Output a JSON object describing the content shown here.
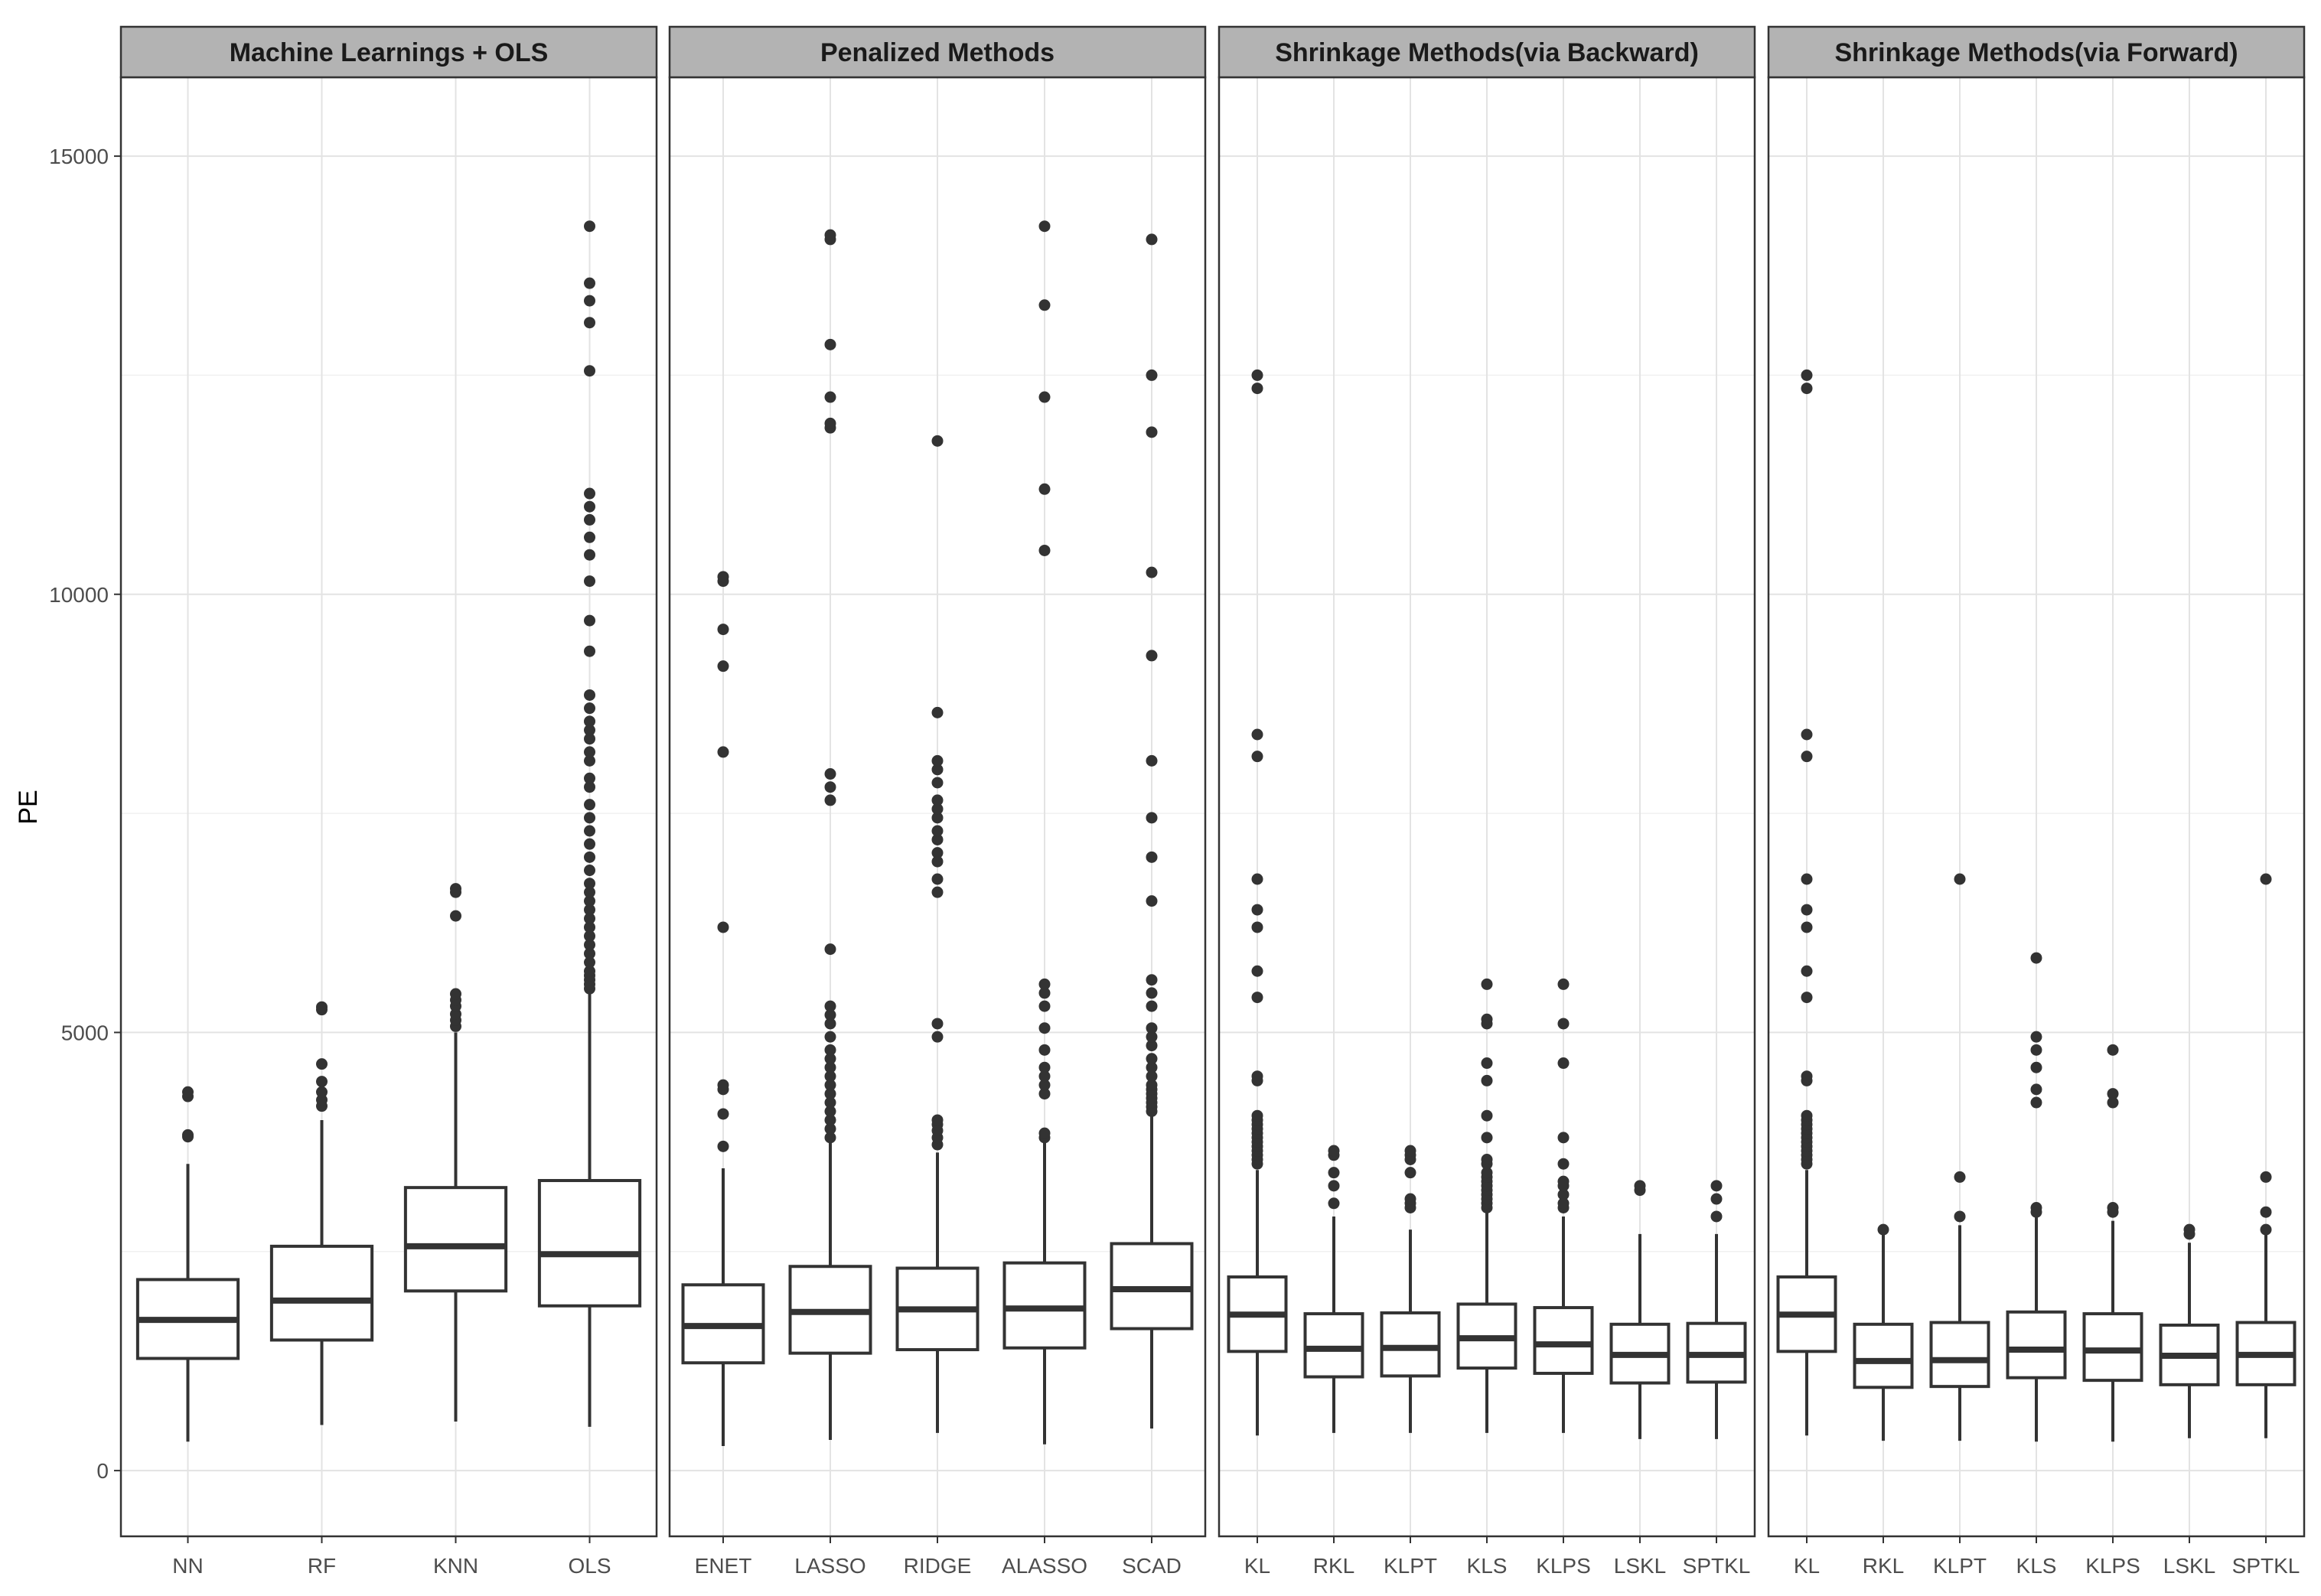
{
  "chart_data": {
    "type": "boxplot",
    "ylabel": "PE",
    "xlabel": "",
    "ylim": [
      -750,
      15900
    ],
    "yticks": [
      0,
      5000,
      10000,
      15000
    ],
    "ytick_labels": [
      "0",
      "5000",
      "10000",
      "15000"
    ],
    "grid": true,
    "legend": "none",
    "panels": [
      {
        "title": "Machine Learnings + OLS",
        "categories": [
          "NN",
          "RF",
          "KNN",
          "OLS"
        ],
        "boxes": [
          {
            "name": "NN",
            "lower_whisker": 330,
            "q1": 1280,
            "median": 1720,
            "q3": 2180,
            "upper_whisker": 3500,
            "outliers": [
              3810,
              3830,
              4270,
              4320
            ]
          },
          {
            "name": "RF",
            "lower_whisker": 520,
            "q1": 1490,
            "median": 1940,
            "q3": 2560,
            "upper_whisker": 4000,
            "outliers": [
              4160,
              4230,
              4320,
              4440,
              4640,
              5260,
              5290
            ]
          },
          {
            "name": "KNN",
            "lower_whisker": 560,
            "q1": 2050,
            "median": 2560,
            "q3": 3230,
            "upper_whisker": 5000,
            "outliers": [
              5070,
              5140,
              5210,
              5300,
              5370,
              5440,
              6330,
              6600,
              6640
            ]
          },
          {
            "name": "OLS",
            "lower_whisker": 500,
            "q1": 1880,
            "median": 2470,
            "q3": 3310,
            "upper_whisker": 5450,
            "outliers": [
              5500,
              5550,
              5600,
              5650,
              5700,
              5800,
              5900,
              6000,
              6100,
              6200,
              6300,
              6400,
              6500,
              6600,
              6700,
              6850,
              7000,
              7150,
              7300,
              7450,
              7600,
              7800,
              7900,
              8100,
              8200,
              8350,
              8450,
              8550,
              8700,
              8850,
              9350,
              9700,
              10150,
              10450,
              10650,
              10850,
              11000,
              11150,
              12550,
              13100,
              13350,
              13550,
              14200
            ]
          }
        ]
      },
      {
        "title": "Penalized Methods",
        "categories": [
          "ENET",
          "LASSO",
          "RIDGE",
          "ALASSO",
          "SCAD"
        ],
        "boxes": [
          {
            "name": "ENET",
            "lower_whisker": 280,
            "q1": 1230,
            "median": 1650,
            "q3": 2120,
            "upper_whisker": 3450,
            "outliers": [
              3700,
              4070,
              4350,
              4400,
              6200,
              8200,
              9180,
              9600,
              10150,
              10200
            ]
          },
          {
            "name": "LASSO",
            "lower_whisker": 350,
            "q1": 1340,
            "median": 1810,
            "q3": 2330,
            "upper_whisker": 3750,
            "outliers": [
              3800,
              3900,
              4000,
              4100,
              4200,
              4300,
              4400,
              4500,
              4600,
              4700,
              4800,
              4950,
              5100,
              5200,
              5300,
              5950,
              7650,
              7800,
              7950,
              11900,
              11950,
              12250,
              12850,
              14050,
              14100
            ]
          },
          {
            "name": "RIDGE",
            "lower_whisker": 430,
            "q1": 1380,
            "median": 1840,
            "q3": 2310,
            "upper_whisker": 3630,
            "outliers": [
              3720,
              3800,
              3880,
              3950,
              4000,
              4950,
              5100,
              6600,
              6750,
              6950,
              7050,
              7200,
              7300,
              7450,
              7550,
              7650,
              7850,
              8000,
              8100,
              8650,
              11750
            ]
          },
          {
            "name": "ALASSO",
            "lower_whisker": 300,
            "q1": 1400,
            "median": 1850,
            "q3": 2370,
            "upper_whisker": 3750,
            "outliers": [
              3800,
              3850,
              4300,
              4400,
              4500,
              4600,
              4800,
              5050,
              5300,
              5450,
              5550,
              10500,
              11200,
              12250,
              13300,
              14200
            ]
          },
          {
            "name": "SCAD",
            "lower_whisker": 480,
            "q1": 1620,
            "median": 2070,
            "q3": 2590,
            "upper_whisker": 4050,
            "outliers": [
              4100,
              4150,
              4200,
              4250,
              4300,
              4350,
              4400,
              4500,
              4600,
              4700,
              4850,
              4950,
              5050,
              5300,
              5450,
              5600,
              6500,
              7000,
              7450,
              8100,
              9300,
              10250,
              11850,
              12500,
              14050
            ]
          }
        ]
      },
      {
        "title": "Shrinkage Methods(via Backward)",
        "categories": [
          "KL",
          "RKL",
          "KLPT",
          "KLS",
          "KLPS",
          "LSKL",
          "SPTKL"
        ],
        "boxes": [
          {
            "name": "KL",
            "lower_whisker": 400,
            "q1": 1360,
            "median": 1780,
            "q3": 2210,
            "upper_whisker": 3430,
            "outliers": [
              3500,
              3550,
              3600,
              3650,
              3700,
              3750,
              3800,
              3850,
              3900,
              3950,
              4000,
              4050,
              4450,
              4500,
              5400,
              5700,
              6200,
              6400,
              6750,
              8150,
              8400,
              12350,
              12500
            ]
          },
          {
            "name": "RKL",
            "lower_whisker": 430,
            "q1": 1070,
            "median": 1390,
            "q3": 1790,
            "upper_whisker": 2900,
            "outliers": [
              3050,
              3250,
              3400,
              3600,
              3650
            ]
          },
          {
            "name": "KLPT",
            "lower_whisker": 430,
            "q1": 1080,
            "median": 1400,
            "q3": 1800,
            "upper_whisker": 2750,
            "outliers": [
              3000,
              3050,
              3100,
              3400,
              3550,
              3600,
              3650
            ]
          },
          {
            "name": "KLS",
            "lower_whisker": 430,
            "q1": 1170,
            "median": 1510,
            "q3": 1900,
            "upper_whisker": 2950,
            "outliers": [
              3000,
              3050,
              3100,
              3150,
              3200,
              3250,
              3300,
              3350,
              3400,
              3500,
              3550,
              3800,
              4050,
              4450,
              4650,
              5100,
              5150,
              5550
            ]
          },
          {
            "name": "KLPS",
            "lower_whisker": 430,
            "q1": 1110,
            "median": 1440,
            "q3": 1860,
            "upper_whisker": 2900,
            "outliers": [
              3000,
              3050,
              3150,
              3250,
              3300,
              3500,
              3800,
              4650,
              5100,
              5550
            ]
          },
          {
            "name": "LSKL",
            "lower_whisker": 360,
            "q1": 1000,
            "median": 1320,
            "q3": 1670,
            "upper_whisker": 2700,
            "outliers": [
              3200,
              3250
            ]
          },
          {
            "name": "SPTKL",
            "lower_whisker": 360,
            "q1": 1010,
            "median": 1320,
            "q3": 1680,
            "upper_whisker": 2700,
            "outliers": [
              2900,
              3100,
              3250
            ]
          }
        ]
      },
      {
        "title": "Shrinkage Methods(via Forward)",
        "categories": [
          "KL",
          "RKL",
          "KLPT",
          "KLS",
          "KLPS",
          "LSKL",
          "SPTKL"
        ],
        "boxes": [
          {
            "name": "KL",
            "lower_whisker": 400,
            "q1": 1360,
            "median": 1780,
            "q3": 2210,
            "upper_whisker": 3430,
            "outliers": [
              3500,
              3550,
              3600,
              3650,
              3700,
              3750,
              3800,
              3850,
              3900,
              3950,
              4000,
              4050,
              4450,
              4500,
              5400,
              5700,
              6200,
              6400,
              6750,
              8150,
              8400,
              12350,
              12500
            ]
          },
          {
            "name": "RKL",
            "lower_whisker": 340,
            "q1": 950,
            "median": 1250,
            "q3": 1670,
            "upper_whisker": 2750,
            "outliers": [
              2750
            ]
          },
          {
            "name": "KLPT",
            "lower_whisker": 340,
            "q1": 960,
            "median": 1260,
            "q3": 1690,
            "upper_whisker": 2800,
            "outliers": [
              2900,
              3350,
              6750
            ]
          },
          {
            "name": "KLS",
            "lower_whisker": 330,
            "q1": 1060,
            "median": 1380,
            "q3": 1810,
            "upper_whisker": 2900,
            "outliers": [
              2950,
              3000,
              4200,
              4350,
              4600,
              4800,
              4950,
              5850
            ]
          },
          {
            "name": "KLPS",
            "lower_whisker": 330,
            "q1": 1030,
            "median": 1370,
            "q3": 1790,
            "upper_whisker": 2850,
            "outliers": [
              2950,
              3000,
              4200,
              4300,
              4800
            ]
          },
          {
            "name": "LSKL",
            "lower_whisker": 370,
            "q1": 980,
            "median": 1310,
            "q3": 1660,
            "upper_whisker": 2600,
            "outliers": [
              2700,
              2750
            ]
          },
          {
            "name": "SPTKL",
            "lower_whisker": 370,
            "q1": 980,
            "median": 1320,
            "q3": 1690,
            "upper_whisker": 2700,
            "outliers": [
              2750,
              2950,
              3350,
              6750
            ]
          }
        ]
      }
    ]
  }
}
